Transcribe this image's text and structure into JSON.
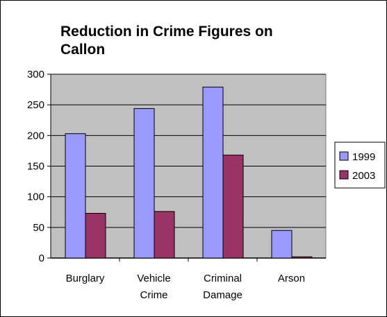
{
  "chart_data": {
    "type": "bar",
    "title_lines": [
      "Reduction in Crime Figures on",
      "Callon"
    ],
    "categories": [
      [
        "Burglary"
      ],
      [
        "Vehicle",
        "Crime"
      ],
      [
        "Criminal",
        "Damage"
      ],
      [
        "Arson"
      ]
    ],
    "series": [
      {
        "name": "1999",
        "color": "#9999ff",
        "values": [
          203,
          244,
          279,
          45
        ]
      },
      {
        "name": "2003",
        "color": "#993366",
        "values": [
          73,
          76,
          168,
          2
        ]
      }
    ],
    "yticks": [
      "0",
      "50",
      "100",
      "150",
      "200",
      "250",
      "300"
    ],
    "ylim": [
      0,
      300
    ],
    "grid": true,
    "plot_background": "#c0c0c0",
    "legend_position": "right"
  }
}
